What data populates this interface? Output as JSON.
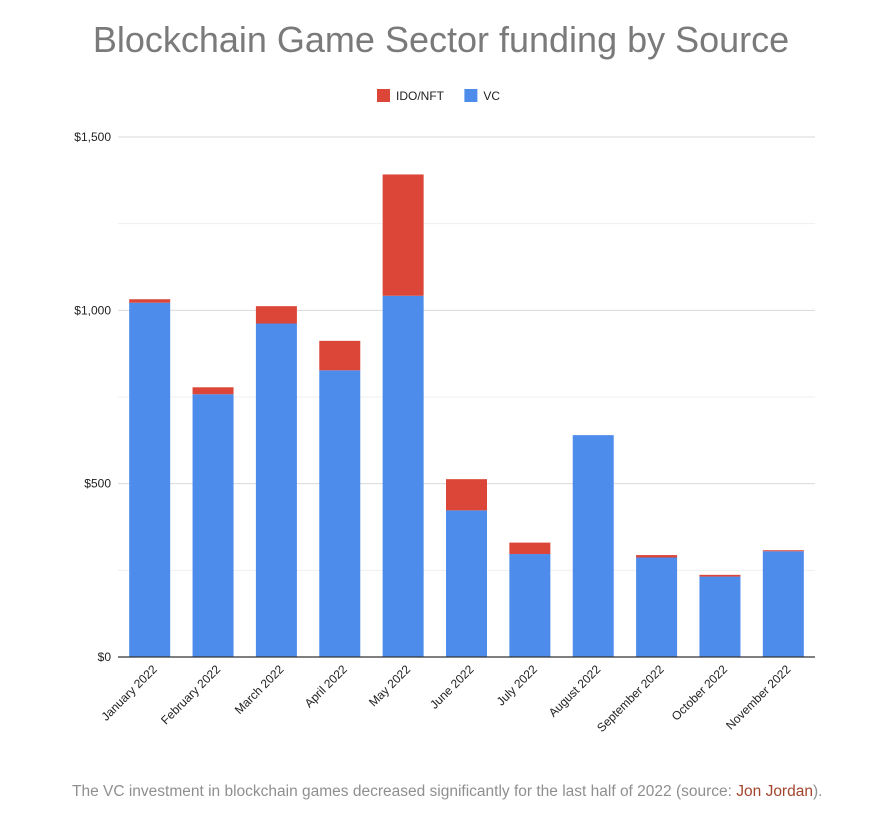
{
  "chart_data": {
    "type": "bar",
    "stacked": true,
    "title": "Blockchain Game Sector funding by Source",
    "xlabel": "",
    "ylabel": "",
    "categories": [
      "January 2022",
      "February 2022",
      "March 2022",
      "April 2022",
      "May 2022",
      "June 2022",
      "July 2022",
      "August 2022",
      "September 2022",
      "October 2022",
      "November 2022"
    ],
    "series": [
      {
        "name": "VC",
        "color": "#4e8cec",
        "values": [
          1022,
          758,
          962,
          827,
          1042,
          423,
          297,
          640,
          287,
          232,
          305
        ]
      },
      {
        "name": "IDO/NFT",
        "color": "#dc4639",
        "values": [
          10,
          20,
          50,
          85,
          350,
          90,
          33,
          0,
          7,
          5,
          3
        ]
      }
    ],
    "legend_order": [
      "IDO/NFT",
      "VC"
    ],
    "legend_position": "top-center",
    "ylim": [
      0,
      1500
    ],
    "yticks": [
      0,
      500,
      1000,
      1500
    ],
    "ytick_labels": [
      "$0",
      "$500",
      "$1,000",
      "$1,500"
    ],
    "minor_gridlines": [
      250,
      750,
      1250
    ],
    "grid": true
  },
  "caption": {
    "text": "The VC investment in blockchain games decreased significantly for the last half of 2022 (source: ",
    "link_text": "Jon Jordan",
    "suffix": ")."
  }
}
